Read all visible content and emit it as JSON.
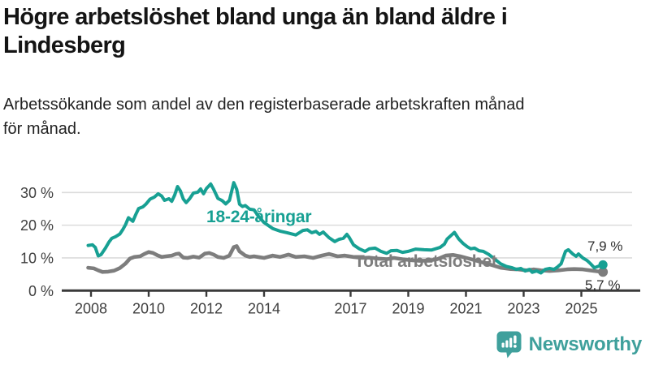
{
  "title_lines": [
    "Högre arbetslöshet bland unga än bland äldre i",
    "Lindesberg"
  ],
  "subtitle_lines": [
    "Arbetssökande som andel av den registerbaserade arbetskraften månad",
    "för månad."
  ],
  "branding": {
    "logo_text": "Newsworthy",
    "logo_icon": "bar-chart-speech-bubble-icon"
  },
  "colors": {
    "youth_line": "#17a093",
    "total_line": "#7d7d7d",
    "gridline": "#dcdcdc",
    "axis": "#3a3a3a",
    "tick_text": "#3f3f3f",
    "title_text": "#141414",
    "subtitle_text": "#222222",
    "end_label_text": "#2e2e2e",
    "logo_teal": "#3fa09c",
    "background": "#ffffff"
  },
  "chart_data": {
    "type": "line",
    "title": "Högre arbetslöshet bland unga än bland äldre i Lindesberg",
    "subtitle": "Arbetssökande som andel av den registerbaserade arbetskraften månad för månad.",
    "unit": "%",
    "grid": "horizontal",
    "legend": "inline-labels",
    "x_range": [
      2007.85,
      2026.2
    ],
    "y_range": [
      0,
      35
    ],
    "x_ticks": [
      {
        "year": 2008,
        "label": "2008"
      },
      {
        "year": 2010,
        "label": "2010"
      },
      {
        "year": 2012,
        "label": "2012"
      },
      {
        "year": 2014,
        "label": "2014"
      },
      {
        "year": 2017,
        "label": "2017"
      },
      {
        "year": 2019,
        "label": "2019"
      },
      {
        "year": 2021,
        "label": "2021"
      },
      {
        "year": 2023,
        "label": "2023"
      },
      {
        "year": 2025,
        "label": "2025"
      }
    ],
    "y_ticks": [
      {
        "value": 0,
        "label": "0 %"
      },
      {
        "value": 10,
        "label": "10 %"
      },
      {
        "value": 20,
        "label": "20 %"
      },
      {
        "value": 30,
        "label": "30 %"
      }
    ],
    "series": [
      {
        "name": "18-24-åringar",
        "color": "#17a093",
        "end_label": "7,9 %",
        "final_value": 7.9,
        "points": [
          [
            2007.9,
            13.8
          ],
          [
            2008.05,
            14.0
          ],
          [
            2008.15,
            13.2
          ],
          [
            2008.25,
            10.6
          ],
          [
            2008.35,
            11.0
          ],
          [
            2008.5,
            13.0
          ],
          [
            2008.62,
            14.8
          ],
          [
            2008.72,
            16.0
          ],
          [
            2008.85,
            16.5
          ],
          [
            2009.0,
            17.3
          ],
          [
            2009.1,
            18.6
          ],
          [
            2009.2,
            20.2
          ],
          [
            2009.3,
            22.3
          ],
          [
            2009.45,
            21.2
          ],
          [
            2009.55,
            23.2
          ],
          [
            2009.65,
            25.1
          ],
          [
            2009.8,
            25.6
          ],
          [
            2009.9,
            26.4
          ],
          [
            2010.05,
            28.0
          ],
          [
            2010.2,
            28.6
          ],
          [
            2010.33,
            29.6
          ],
          [
            2010.45,
            28.9
          ],
          [
            2010.55,
            27.6
          ],
          [
            2010.7,
            28.1
          ],
          [
            2010.8,
            27.3
          ],
          [
            2010.9,
            29.2
          ],
          [
            2011.0,
            31.8
          ],
          [
            2011.1,
            30.5
          ],
          [
            2011.2,
            28.0
          ],
          [
            2011.3,
            26.9
          ],
          [
            2011.42,
            28.1
          ],
          [
            2011.55,
            29.8
          ],
          [
            2011.7,
            30.1
          ],
          [
            2011.8,
            31.1
          ],
          [
            2011.9,
            29.6
          ],
          [
            2012.0,
            31.2
          ],
          [
            2012.15,
            32.6
          ],
          [
            2012.25,
            31.0
          ],
          [
            2012.4,
            28.2
          ],
          [
            2012.55,
            27.5
          ],
          [
            2012.67,
            26.5
          ],
          [
            2012.8,
            27.6
          ],
          [
            2012.95,
            33.0
          ],
          [
            2013.05,
            31.0
          ],
          [
            2013.15,
            26.4
          ],
          [
            2013.25,
            25.7
          ],
          [
            2013.35,
            26.0
          ],
          [
            2013.5,
            24.9
          ],
          [
            2013.65,
            24.7
          ],
          [
            2013.8,
            22.8
          ],
          [
            2014.0,
            20.8
          ],
          [
            2014.3,
            19.0
          ],
          [
            2014.55,
            18.2
          ],
          [
            2014.8,
            17.7
          ],
          [
            2015.1,
            17.0
          ],
          [
            2015.35,
            18.4
          ],
          [
            2015.5,
            18.6
          ],
          [
            2015.65,
            17.7
          ],
          [
            2015.8,
            18.1
          ],
          [
            2015.92,
            17.2
          ],
          [
            2016.05,
            17.9
          ],
          [
            2016.25,
            16.2
          ],
          [
            2016.45,
            15.0
          ],
          [
            2016.6,
            15.7
          ],
          [
            2016.75,
            16.0
          ],
          [
            2016.87,
            17.2
          ],
          [
            2016.95,
            16.3
          ],
          [
            2017.1,
            14.0
          ],
          [
            2017.3,
            12.8
          ],
          [
            2017.5,
            12.0
          ],
          [
            2017.65,
            12.8
          ],
          [
            2017.85,
            13.0
          ],
          [
            2018.05,
            12.0
          ],
          [
            2018.25,
            11.4
          ],
          [
            2018.4,
            12.2
          ],
          [
            2018.6,
            12.3
          ],
          [
            2018.8,
            11.7
          ],
          [
            2019.0,
            12.0
          ],
          [
            2019.25,
            12.7
          ],
          [
            2019.55,
            12.5
          ],
          [
            2019.8,
            12.4
          ],
          [
            2020.1,
            13.2
          ],
          [
            2020.25,
            14.2
          ],
          [
            2020.35,
            15.8
          ],
          [
            2020.5,
            17.0
          ],
          [
            2020.6,
            17.8
          ],
          [
            2020.75,
            15.8
          ],
          [
            2020.9,
            14.4
          ],
          [
            2021.05,
            13.4
          ],
          [
            2021.17,
            12.8
          ],
          [
            2021.3,
            13.0
          ],
          [
            2021.45,
            12.2
          ],
          [
            2021.6,
            12.0
          ],
          [
            2021.8,
            11.0
          ],
          [
            2022.0,
            9.6
          ],
          [
            2022.2,
            8.2
          ],
          [
            2022.4,
            7.4
          ],
          [
            2022.6,
            7.0
          ],
          [
            2022.75,
            6.5
          ],
          [
            2022.9,
            6.8
          ],
          [
            2023.05,
            6.0
          ],
          [
            2023.2,
            6.5
          ],
          [
            2023.3,
            5.6
          ],
          [
            2023.45,
            6.0
          ],
          [
            2023.6,
            5.4
          ],
          [
            2023.75,
            6.5
          ],
          [
            2023.9,
            6.8
          ],
          [
            2024.05,
            6.5
          ],
          [
            2024.17,
            7.2
          ],
          [
            2024.3,
            8.2
          ],
          [
            2024.45,
            12.0
          ],
          [
            2024.55,
            12.5
          ],
          [
            2024.7,
            11.2
          ],
          [
            2024.82,
            10.5
          ],
          [
            2024.9,
            11.2
          ],
          [
            2025.05,
            10.0
          ],
          [
            2025.2,
            9.2
          ],
          [
            2025.32,
            8.2
          ],
          [
            2025.45,
            7.0
          ],
          [
            2025.6,
            7.5
          ],
          [
            2025.75,
            7.9
          ]
        ]
      },
      {
        "name": "Total arbetslöshet",
        "color": "#7d7d7d",
        "end_label": "5,7 %",
        "final_value": 5.7,
        "points": [
          [
            2007.9,
            7.0
          ],
          [
            2008.1,
            6.8
          ],
          [
            2008.25,
            6.2
          ],
          [
            2008.4,
            5.7
          ],
          [
            2008.6,
            5.8
          ],
          [
            2008.8,
            6.1
          ],
          [
            2009.0,
            6.9
          ],
          [
            2009.2,
            8.3
          ],
          [
            2009.35,
            9.8
          ],
          [
            2009.5,
            10.3
          ],
          [
            2009.7,
            10.5
          ],
          [
            2009.85,
            11.2
          ],
          [
            2010.0,
            11.8
          ],
          [
            2010.15,
            11.5
          ],
          [
            2010.3,
            10.8
          ],
          [
            2010.45,
            10.3
          ],
          [
            2010.6,
            10.5
          ],
          [
            2010.8,
            10.7
          ],
          [
            2010.95,
            11.2
          ],
          [
            2011.05,
            11.3
          ],
          [
            2011.2,
            10.1
          ],
          [
            2011.35,
            10.0
          ],
          [
            2011.55,
            10.4
          ],
          [
            2011.75,
            10.1
          ],
          [
            2011.95,
            11.3
          ],
          [
            2012.1,
            11.5
          ],
          [
            2012.25,
            11.0
          ],
          [
            2012.4,
            10.3
          ],
          [
            2012.6,
            10.0
          ],
          [
            2012.8,
            10.7
          ],
          [
            2012.95,
            13.3
          ],
          [
            2013.05,
            13.6
          ],
          [
            2013.15,
            12.0
          ],
          [
            2013.35,
            10.7
          ],
          [
            2013.5,
            10.3
          ],
          [
            2013.65,
            10.5
          ],
          [
            2013.85,
            10.2
          ],
          [
            2014.0,
            10.0
          ],
          [
            2014.3,
            10.7
          ],
          [
            2014.55,
            10.3
          ],
          [
            2014.85,
            11.0
          ],
          [
            2015.1,
            10.3
          ],
          [
            2015.4,
            10.5
          ],
          [
            2015.7,
            10.0
          ],
          [
            2016.0,
            10.7
          ],
          [
            2016.25,
            11.2
          ],
          [
            2016.55,
            10.5
          ],
          [
            2016.8,
            10.7
          ],
          [
            2017.1,
            10.3
          ],
          [
            2017.4,
            10.0
          ],
          [
            2017.65,
            10.1
          ],
          [
            2017.95,
            9.8
          ],
          [
            2018.25,
            9.6
          ],
          [
            2018.5,
            10.0
          ],
          [
            2018.8,
            9.6
          ],
          [
            2019.1,
            9.3
          ],
          [
            2019.4,
            9.1
          ],
          [
            2019.7,
            9.2
          ],
          [
            2020.0,
            9.6
          ],
          [
            2020.3,
            10.7
          ],
          [
            2020.55,
            10.9
          ],
          [
            2020.8,
            10.5
          ],
          [
            2021.1,
            9.8
          ],
          [
            2021.5,
            8.8
          ],
          [
            2021.9,
            7.8
          ],
          [
            2022.2,
            7.0
          ],
          [
            2022.55,
            6.6
          ],
          [
            2022.8,
            6.5
          ],
          [
            2023.1,
            6.2
          ],
          [
            2023.35,
            6.5
          ],
          [
            2023.6,
            6.2
          ],
          [
            2023.9,
            6.0
          ],
          [
            2024.2,
            6.2
          ],
          [
            2024.5,
            6.5
          ],
          [
            2024.75,
            6.6
          ],
          [
            2025.05,
            6.5
          ],
          [
            2025.3,
            6.2
          ],
          [
            2025.55,
            5.9
          ],
          [
            2025.75,
            5.7
          ]
        ]
      }
    ]
  }
}
